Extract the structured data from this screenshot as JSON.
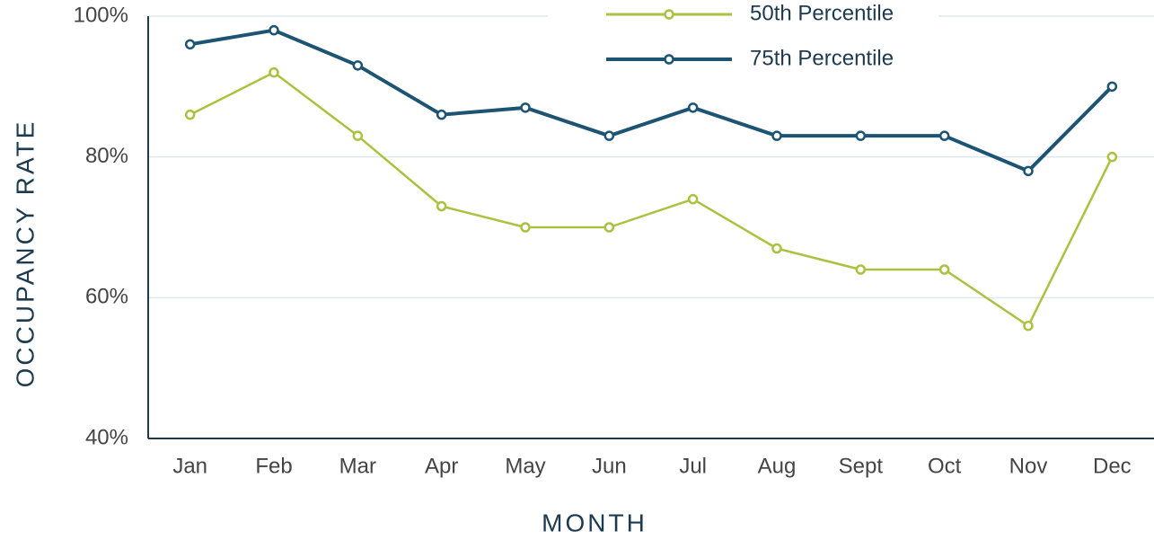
{
  "chart_data": {
    "type": "line",
    "y_label": "OCCUPANCY RATE",
    "x_label": "MONTH",
    "categories": [
      "Jan",
      "Feb",
      "Mar",
      "Apr",
      "May",
      "Jun",
      "Jul",
      "Aug",
      "Sept",
      "Oct",
      "Nov",
      "Dec"
    ],
    "series": [
      {
        "name": "50th Percentile",
        "color": "#a9c23f",
        "values": [
          86,
          92,
          83,
          73,
          70,
          70,
          74,
          67,
          64,
          64,
          56,
          80
        ]
      },
      {
        "name": "75th Percentile",
        "color": "#1d5474",
        "values": [
          96,
          98,
          93,
          86,
          87,
          83,
          87,
          83,
          83,
          83,
          78,
          90
        ]
      }
    ],
    "ylim": [
      40,
      100
    ],
    "yticks": [
      {
        "value": 40,
        "label": "40%"
      },
      {
        "value": 60,
        "label": "60%"
      },
      {
        "value": 80,
        "label": "80%"
      },
      {
        "value": 100,
        "label": "100%"
      }
    ],
    "grid": true,
    "legend": "top"
  }
}
